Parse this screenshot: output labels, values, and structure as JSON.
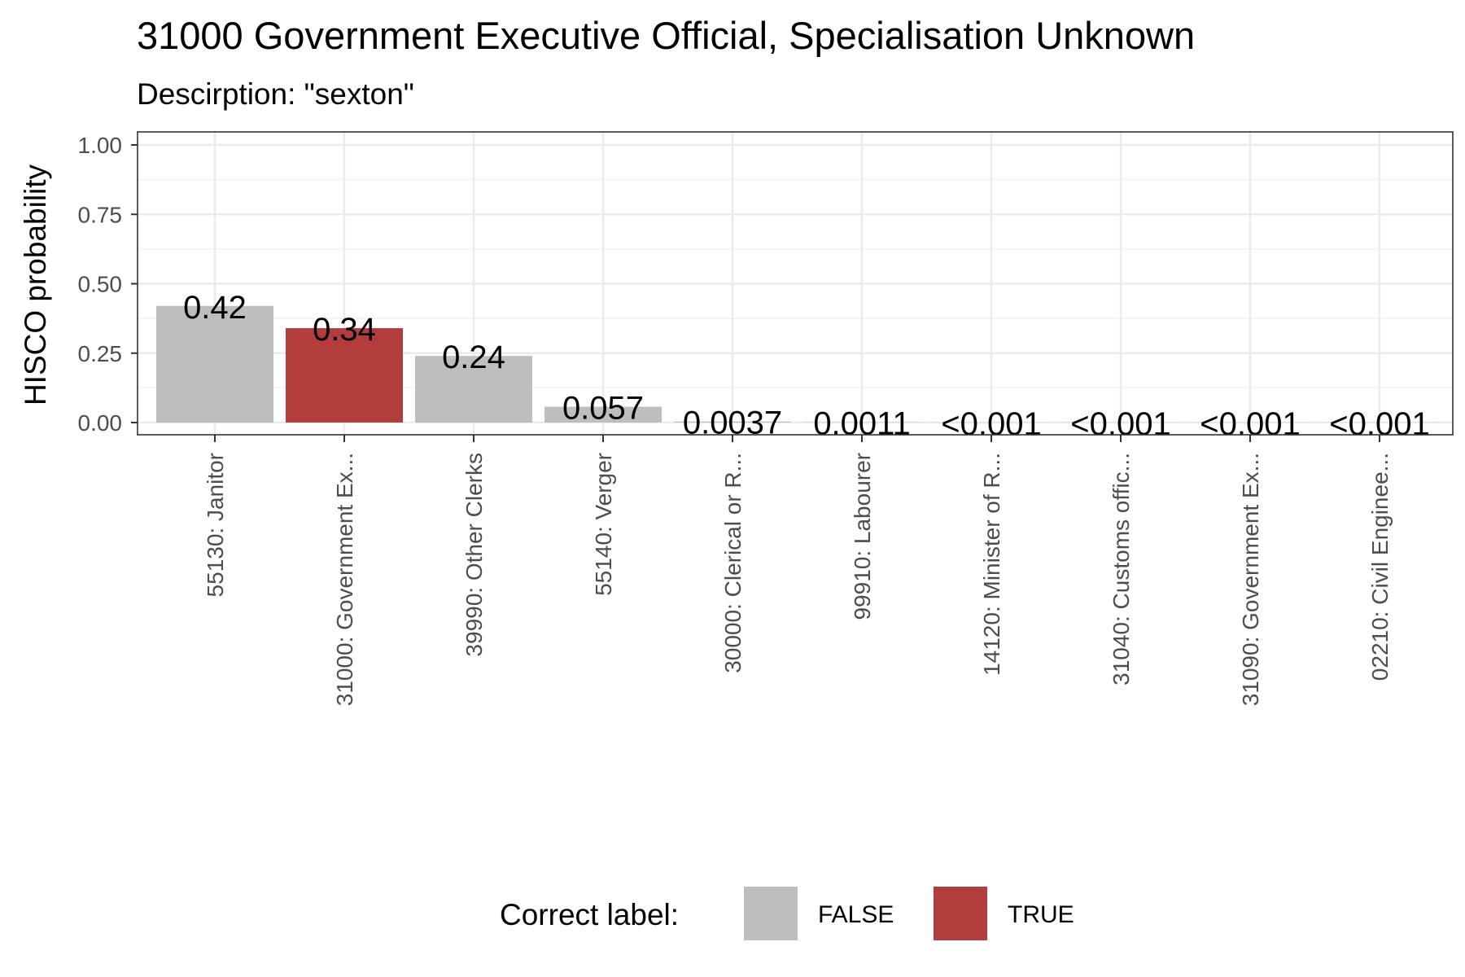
{
  "chart_data": {
    "type": "bar",
    "title": "31000 Government Executive Official, Specialisation Unknown",
    "subtitle": "Descirption: \"sexton\"",
    "xlabel": "",
    "ylabel": "HISCO probability",
    "ylim": [
      0,
      1
    ],
    "yticks": [
      "0.00",
      "0.25",
      "0.50",
      "0.75",
      "1.00"
    ],
    "ytick_values": [
      0,
      0.25,
      0.5,
      0.75,
      1.0
    ],
    "grid": true,
    "categories": [
      "55130: Janitor",
      "31000: Government Ex...",
      "39990: Other Clerks",
      "55140: Verger",
      "30000: Clerical or R...",
      "99910: Labourer",
      "14120: Minister of R...",
      "31040: Customs offic...",
      "31090: Government Ex...",
      "02210: Civil Enginee..."
    ],
    "values": [
      0.42,
      0.34,
      0.24,
      0.057,
      0.0037,
      0.0011,
      0.0005,
      0.0005,
      0.0005,
      0.0005
    ],
    "data_labels": [
      "0.42",
      "0.34",
      "0.24",
      "0.057",
      "0.0037",
      "0.0011",
      "<0.001",
      "<0.001",
      "<0.001",
      "<0.001"
    ],
    "correct": [
      false,
      true,
      false,
      false,
      false,
      false,
      false,
      false,
      false,
      false
    ],
    "legend": {
      "title": "Correct label:",
      "position": "bottom",
      "items": [
        {
          "label": "FALSE",
          "color": "#bebebe"
        },
        {
          "label": "TRUE",
          "color": "#b33c3c"
        }
      ]
    },
    "colors": {
      "false": "#bebebe",
      "true": "#b33c3c"
    }
  }
}
